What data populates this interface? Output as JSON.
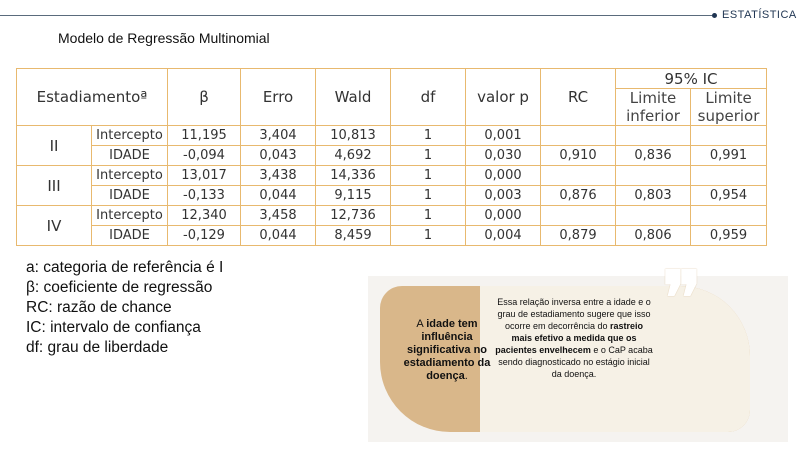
{
  "header": {
    "section_label": "ESTATÍSTICA"
  },
  "title": "Modelo de Regressão Multinomial",
  "table": {
    "columns": {
      "stage": "Estadiamentoª",
      "beta": "β",
      "erro": "Erro",
      "wald": "Wald",
      "df": "df",
      "p": "valor p",
      "rc": "RC",
      "ic_group": "95% IC",
      "ic_low": "Limite inferior",
      "ic_high": "Limite superior"
    },
    "stages": [
      {
        "name": "II",
        "rows": [
          {
            "label": "Intercepto",
            "beta": "11,195",
            "erro": "3,404",
            "wald": "10,813",
            "df": "1",
            "p": "0,001",
            "rc": "",
            "low": "",
            "high": ""
          },
          {
            "label": "IDADE",
            "beta": "-0,094",
            "erro": "0,043",
            "wald": "4,692",
            "df": "1",
            "p": "0,030",
            "rc": "0,910",
            "low": "0,836",
            "high": "0,991"
          }
        ]
      },
      {
        "name": "III",
        "rows": [
          {
            "label": "Intercepto",
            "beta": "13,017",
            "erro": "3,438",
            "wald": "14,336",
            "df": "1",
            "p": "0,000",
            "rc": "",
            "low": "",
            "high": ""
          },
          {
            "label": "IDADE",
            "beta": "-0,133",
            "erro": "0,044",
            "wald": "9,115",
            "df": "1",
            "p": "0,003",
            "rc": "0,876",
            "low": "0,803",
            "high": "0,954"
          }
        ]
      },
      {
        "name": "IV",
        "rows": [
          {
            "label": "Intercepto",
            "beta": "12,340",
            "erro": "3,458",
            "wald": "12,736",
            "df": "1",
            "p": "0,000",
            "rc": "",
            "low": "",
            "high": ""
          },
          {
            "label": "IDADE",
            "beta": "-0,129",
            "erro": "0,044",
            "wald": "8,459",
            "df": "1",
            "p": "0,004",
            "rc": "0,879",
            "low": "0,806",
            "high": "0,959"
          }
        ]
      }
    ]
  },
  "footnotes": [
    "a: categoria de referência é I",
    "β: coeficiente de regressão",
    "RC: razão de chance",
    "IC: intervalo de confiança",
    "df: grau de liberdade"
  ],
  "callout": {
    "left": {
      "p1": "A ",
      "b1": "idade tem influência significativa no estadiamento da doença",
      "p2": "."
    },
    "right": {
      "t1": "Essa relação inversa entre a idade e o grau de estadiamento sugere que isso ocorre em decorrência do ",
      "b1": "rastreio mais efetivo a medida que os pacientes envelhecem",
      "t2": " e o CaP acaba sendo diagnosticado no estágio inicial da doença."
    },
    "quote_glyph": "❞",
    "colors": {
      "tan": "#d9b78a",
      "cream": "#f6f1e6",
      "border": "#e8b96f"
    }
  }
}
